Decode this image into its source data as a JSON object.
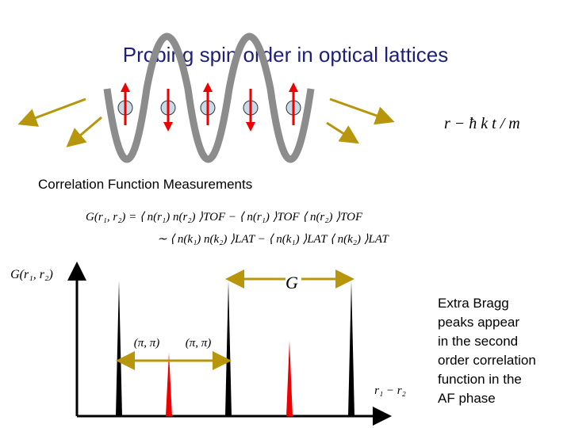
{
  "title": "Probing spin order in optical lattices",
  "formula": "r − ħ k t / m",
  "subtitle": "Correlation Function Measurements",
  "equations": [
    "G(r₁, r₂) = ⟨ n(r₁) n(r₂) ⟩TOF − ⟨ n(r₁) ⟩TOF ⟨ n(r₂) ⟩TOF",
    "∼ ⟨ n(k₁) n(k₂) ⟩LAT − ⟨ n(k₁) ⟩LAT ⟨ n(k₂) ⟩LAT"
  ],
  "plot": {
    "y_label": "G(r₁, r₂)",
    "x_label": "r₁ − r₂",
    "g_label": "G",
    "pi_labels": [
      "(π, π)",
      "(π, π)"
    ]
  },
  "note": [
    "Extra Bragg",
    "peaks appear",
    "in the second",
    "order correlation",
    "function in the",
    "AF phase"
  ]
}
